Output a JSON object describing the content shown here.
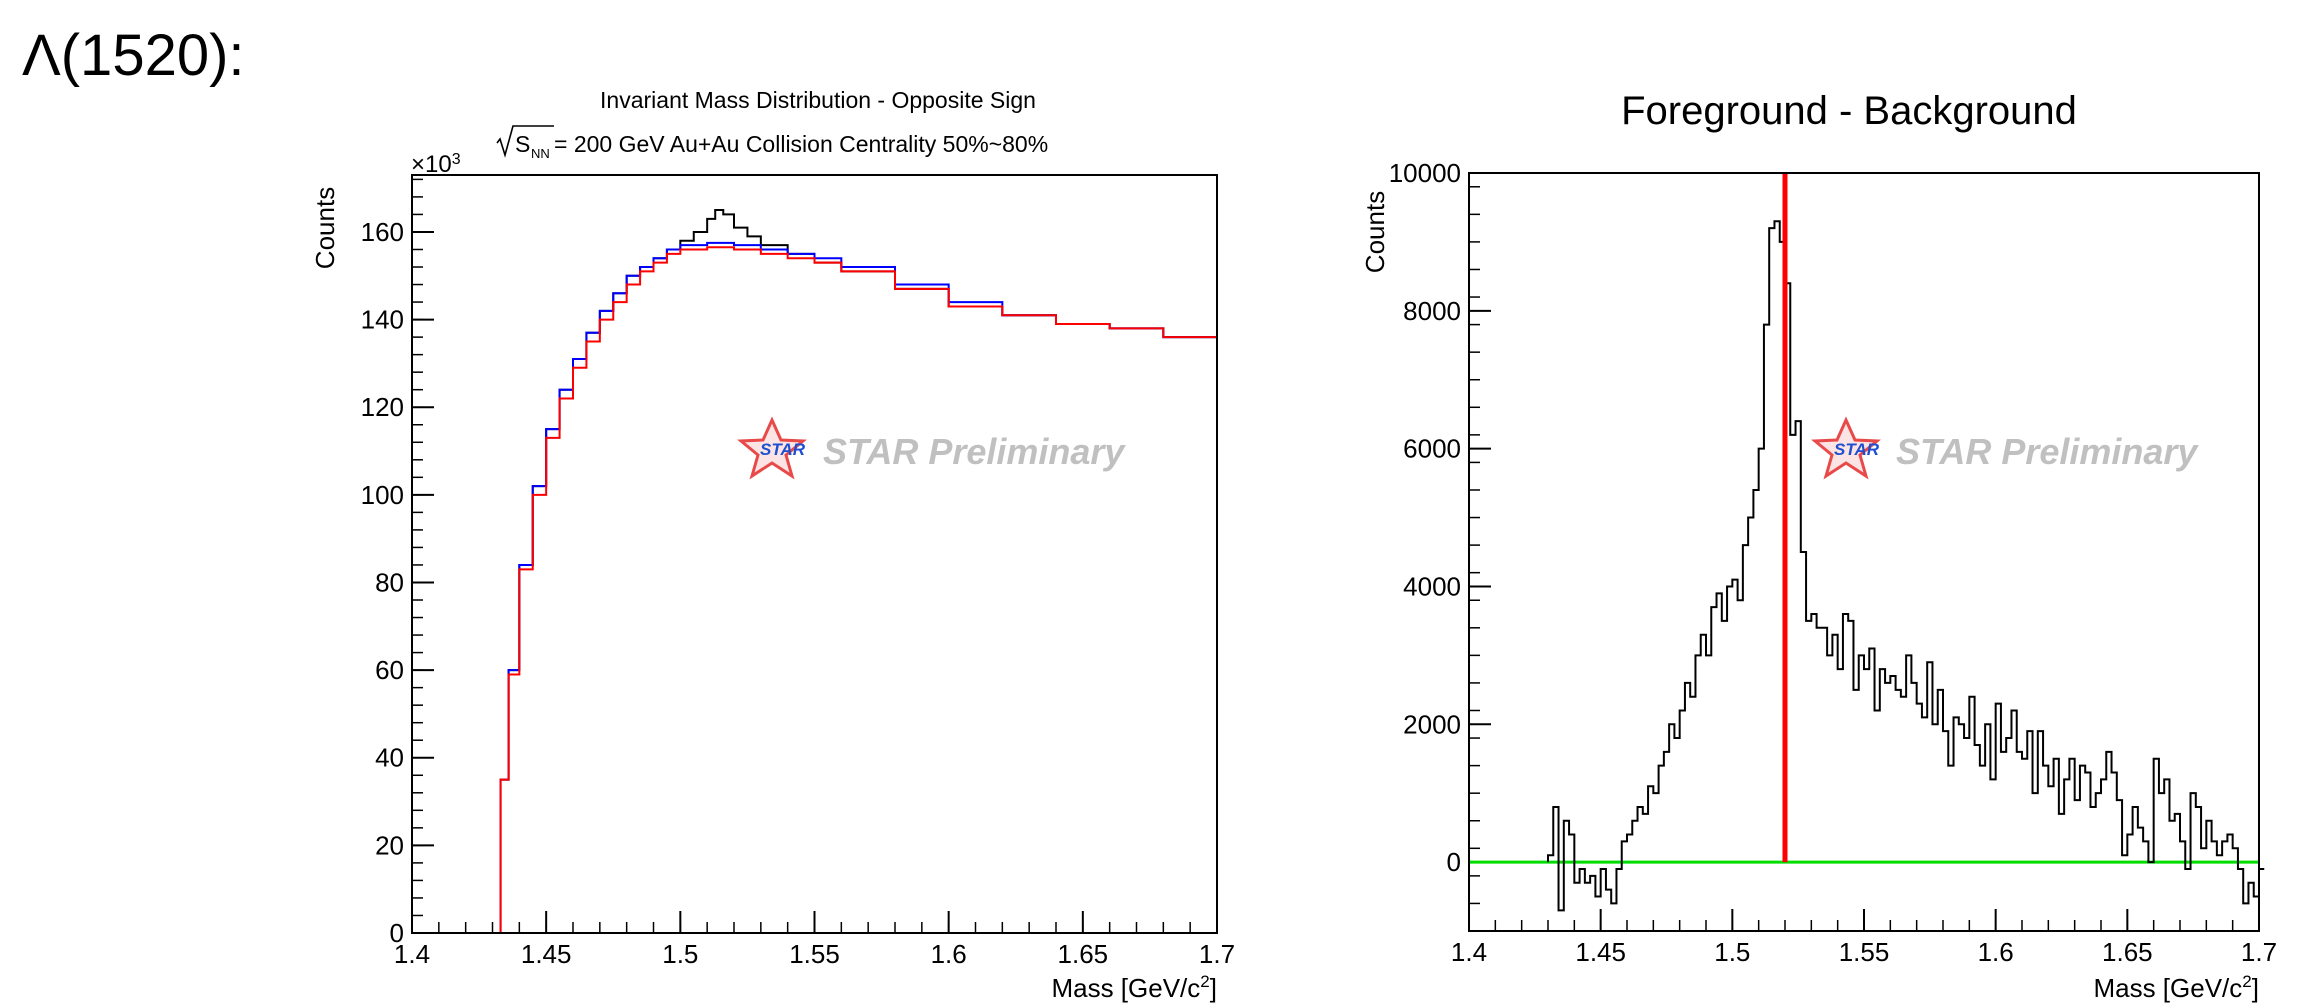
{
  "page_label": "Λ(1520):",
  "watermark": "STAR Preliminary",
  "watermark_logo_text": "STAR",
  "chart_data": [
    {
      "type": "line",
      "title": "Invariant Mass Distribution - Opposite Sign",
      "subtitle_root": "S",
      "subtitle_sub": "NN",
      "subtitle_rest": " = 200 GeV Au+Au Collision Centrality 50%~80%",
      "xlabel": "Mass [GeV/c",
      "xlabel_sup": "2",
      "xlabel_end": "]",
      "ylabel": "Counts",
      "y_multiplier": "×10",
      "y_multiplier_exp": "3",
      "xlim": [
        1.4,
        1.7
      ],
      "ylim": [
        0,
        173
      ],
      "x_ticks": [
        1.4,
        1.45,
        1.5,
        1.55,
        1.6,
        1.65,
        1.7
      ],
      "x_tick_labels": [
        "1.4",
        "1.45",
        "1.5",
        "1.55",
        "1.6",
        "1.65",
        "1.7"
      ],
      "y_ticks": [
        0,
        20,
        40,
        60,
        80,
        100,
        120,
        140,
        160
      ],
      "y_tick_labels": [
        "0",
        "20",
        "40",
        "60",
        "80",
        "100",
        "120",
        "140",
        "160"
      ],
      "colors": {
        "black": "#000000",
        "blue": "#0000ff",
        "red": "#ff0000"
      },
      "series": [
        {
          "color": "#000000",
          "x": [
            1.4,
            1.43,
            1.433,
            1.436,
            1.44,
            1.445,
            1.45,
            1.455,
            1.46,
            1.465,
            1.47,
            1.475,
            1.48,
            1.485,
            1.49,
            1.495,
            1.5,
            1.505,
            1.51,
            1.513,
            1.516,
            1.52,
            1.525,
            1.53,
            1.54,
            1.55,
            1.56,
            1.58,
            1.6,
            1.62,
            1.64,
            1.66,
            1.68,
            1.7
          ],
          "y": [
            0,
            0,
            35,
            60,
            84,
            102,
            115,
            124,
            131,
            137,
            142,
            146,
            150,
            152,
            154,
            156,
            158,
            160,
            163,
            165,
            164,
            161,
            159,
            157,
            155,
            153,
            151,
            147,
            143,
            141,
            139,
            138,
            136,
            135
          ]
        },
        {
          "color": "#0000ff",
          "x": [
            1.4,
            1.43,
            1.433,
            1.436,
            1.44,
            1.445,
            1.45,
            1.455,
            1.46,
            1.465,
            1.47,
            1.475,
            1.48,
            1.485,
            1.49,
            1.495,
            1.5,
            1.51,
            1.52,
            1.53,
            1.54,
            1.55,
            1.56,
            1.58,
            1.6,
            1.62,
            1.64,
            1.66,
            1.68,
            1.7
          ],
          "y": [
            0,
            0,
            35,
            60,
            84,
            102,
            115,
            124,
            131,
            137,
            142,
            146,
            150,
            152,
            154,
            156,
            157,
            157.5,
            157,
            156,
            155,
            154,
            152,
            148,
            144,
            141,
            139,
            138,
            136,
            135
          ]
        },
        {
          "color": "#ff0000",
          "x": [
            1.4,
            1.43,
            1.433,
            1.436,
            1.44,
            1.445,
            1.45,
            1.455,
            1.46,
            1.465,
            1.47,
            1.475,
            1.48,
            1.485,
            1.49,
            1.495,
            1.5,
            1.51,
            1.52,
            1.53,
            1.54,
            1.55,
            1.56,
            1.58,
            1.6,
            1.62,
            1.64,
            1.66,
            1.68,
            1.7
          ],
          "y": [
            0,
            0,
            35,
            59,
            83,
            100,
            113,
            122,
            129,
            135,
            140,
            144,
            148,
            151,
            153,
            155,
            156,
            156.5,
            156,
            155,
            154,
            153,
            151,
            147,
            143,
            141,
            139,
            138,
            136,
            135
          ]
        }
      ]
    },
    {
      "type": "line",
      "title": "Foreground - Background",
      "xlabel": "Mass [GeV/c",
      "xlabel_sup": "2",
      "xlabel_end": "]",
      "ylabel": "Counts",
      "xlim": [
        1.4,
        1.7
      ],
      "ylim": [
        -1000,
        10000
      ],
      "x_ticks": [
        1.4,
        1.45,
        1.5,
        1.55,
        1.6,
        1.65,
        1.7
      ],
      "x_tick_labels": [
        "1.4",
        "1.45",
        "1.5",
        "1.55",
        "1.6",
        "1.65",
        "1.7"
      ],
      "y_ticks": [
        0,
        2000,
        4000,
        6000,
        8000,
        10000
      ],
      "y_tick_labels": [
        "0",
        "2000",
        "4000",
        "6000",
        "8000",
        "10000"
      ],
      "reference_lines": {
        "vertical_x": 1.52,
        "vertical_color": "#ff0000",
        "horizontal_y": 0,
        "horizontal_color": "#00dd00"
      },
      "series": [
        {
          "color": "#000000",
          "bin_start": 1.43,
          "bin_width": 0.002,
          "y": [
            100,
            800,
            -700,
            600,
            400,
            -300,
            -100,
            -300,
            -200,
            -500,
            -100,
            -400,
            -600,
            -100,
            300,
            400,
            600,
            800,
            700,
            1100,
            1000,
            1400,
            1600,
            2000,
            1800,
            2200,
            2600,
            2400,
            3000,
            3300,
            3000,
            3700,
            3900,
            3500,
            4000,
            4100,
            3800,
            4600,
            5000,
            5400,
            6000,
            7800,
            9200,
            9300,
            9000,
            8400,
            6200,
            6400,
            4500,
            3500,
            3600,
            3400,
            3400,
            3000,
            3300,
            2800,
            3600,
            3500,
            2500,
            3000,
            2800,
            3100,
            2200,
            2800,
            2600,
            2700,
            2500,
            2400,
            3000,
            2600,
            2300,
            2100,
            2900,
            2000,
            2500,
            1900,
            1400,
            2100,
            2000,
            1800,
            2400,
            1700,
            1400,
            2000,
            1200,
            2300,
            1600,
            1800,
            2200,
            1600,
            1500,
            1900,
            1000,
            1900,
            1400,
            1100,
            1500,
            700,
            1200,
            1500,
            900,
            1400,
            1300,
            800,
            1000,
            1200,
            1600,
            1300,
            900,
            100,
            400,
            800,
            500,
            300,
            0,
            1500,
            1000,
            1200,
            600,
            700,
            300,
            -100,
            1000,
            800,
            200,
            600,
            300,
            100,
            300,
            400,
            200,
            -100,
            -600,
            -300,
            -500,
            -100
          ]
        }
      ]
    }
  ]
}
